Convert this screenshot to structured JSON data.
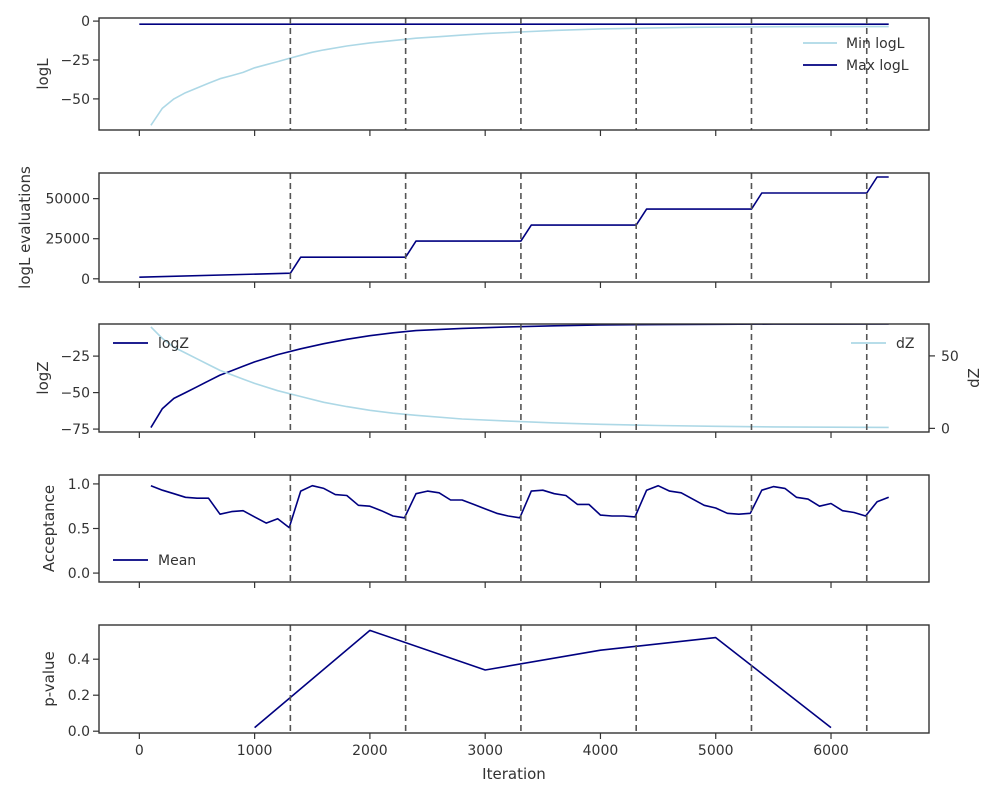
{
  "chart_data": [
    {
      "type": "line",
      "id": "logl",
      "ylabel": "logL",
      "xlim": [
        -350,
        6850
      ],
      "ylim": [
        -70,
        2
      ],
      "yticks": [
        0,
        -25,
        -50
      ],
      "yticklabels": [
        "0",
        "−25",
        "−50"
      ],
      "show_xticklabels": false,
      "legend": {
        "placement": "upper-right"
      },
      "series": [
        {
          "name": "Min logL",
          "color": "#add8e6",
          "x": [
            100,
            200,
            300,
            400,
            500,
            600,
            700,
            800,
            900,
            1000,
            1100,
            1200,
            1300,
            1400,
            1500,
            1600,
            1800,
            2000,
            2200,
            2400,
            2600,
            2800,
            3000,
            3300,
            3600,
            4000,
            4400,
            4800,
            5200,
            5600,
            6000,
            6500
          ],
          "y": [
            -67,
            -56,
            -50,
            -46,
            -43,
            -40,
            -37,
            -35,
            -33,
            -30,
            -28,
            -26,
            -24,
            -22,
            -20,
            -18.5,
            -16,
            -14,
            -12.5,
            -11,
            -10,
            -9,
            -8,
            -7,
            -6,
            -5,
            -4.5,
            -4,
            -3.8,
            -3.6,
            -3.5,
            -3.5
          ]
        },
        {
          "name": "Max logL",
          "color": "#000080",
          "x": [
            0,
            6500
          ],
          "y": [
            -2,
            -2
          ]
        }
      ]
    },
    {
      "type": "line",
      "id": "evals",
      "ylabel": "logL evaluations",
      "xlim": [
        -350,
        6850
      ],
      "ylim": [
        -2000,
        66000
      ],
      "yticks": [
        0,
        25000,
        50000
      ],
      "yticklabels": [
        "0",
        "25000",
        "50000"
      ],
      "show_xticklabels": false,
      "series": [
        {
          "name": "",
          "color": "#000080",
          "x": [
            0,
            1310,
            1400,
            2310,
            2400,
            3310,
            3400,
            4310,
            4400,
            5310,
            5400,
            6310,
            6400,
            6500
          ],
          "y": [
            1000,
            3500,
            13500,
            13500,
            23500,
            23500,
            33500,
            33500,
            43500,
            43500,
            53500,
            53500,
            63500,
            63500
          ]
        }
      ]
    },
    {
      "type": "line",
      "id": "logz",
      "ylabel": "logZ",
      "ylabel_right": "dZ",
      "xlim": [
        -350,
        6850
      ],
      "ylim": [
        -77,
        -3
      ],
      "ylim_right": [
        -2.5,
        72
      ],
      "yticks": [
        -25,
        -50,
        -75
      ],
      "yticklabels": [
        "−25",
        "−50",
        "−75"
      ],
      "yticks_right": [
        50,
        0
      ],
      "yticklabels_right": [
        "50",
        "0"
      ],
      "show_xticklabels": false,
      "series": [
        {
          "name": "logZ",
          "color": "#000080",
          "axis": "left",
          "x": [
            100,
            200,
            300,
            400,
            500,
            600,
            700,
            800,
            900,
            1000,
            1200,
            1400,
            1600,
            1800,
            2000,
            2200,
            2400,
            2800,
            3200,
            3600,
            4000,
            4500,
            5000,
            5500,
            6000,
            6500
          ],
          "y": [
            -74,
            -61,
            -54,
            -50,
            -46,
            -42,
            -38,
            -35,
            -32,
            -29,
            -24,
            -20,
            -16.5,
            -13.5,
            -11,
            -9,
            -7.5,
            -6,
            -5,
            -4.2,
            -3.7,
            -3.4,
            -3.2,
            -3.1,
            -3.05,
            -3.0
          ]
        },
        {
          "name": "dZ",
          "color": "#add8e6",
          "axis": "right",
          "x": [
            100,
            200,
            300,
            400,
            500,
            600,
            700,
            800,
            900,
            1000,
            1200,
            1400,
            1600,
            1800,
            2000,
            2200,
            2400,
            2800,
            3200,
            3600,
            4000,
            4500,
            5000,
            5500,
            6000,
            6500
          ],
          "y": [
            70,
            62,
            56,
            52,
            48,
            44,
            40,
            37,
            34,
            31,
            26,
            22,
            18,
            15,
            12.5,
            10.5,
            9,
            6.5,
            5,
            3.8,
            2.8,
            2,
            1.4,
            1,
            0.8,
            0.7
          ]
        }
      ]
    },
    {
      "type": "line",
      "id": "acceptance",
      "ylabel": "Acceptance",
      "xlim": [
        -350,
        6850
      ],
      "ylim": [
        -0.1,
        1.1
      ],
      "yticks": [
        1.0,
        0.5,
        0.0
      ],
      "yticklabels": [
        "1.0",
        "0.5",
        "0.0"
      ],
      "show_xticklabels": false,
      "series": [
        {
          "name": "Mean",
          "color": "#000080",
          "x": [
            100,
            200,
            300,
            400,
            500,
            600,
            700,
            800,
            900,
            1000,
            1100,
            1200,
            1300,
            1400,
            1500,
            1600,
            1700,
            1800,
            1900,
            2000,
            2100,
            2200,
            2300,
            2400,
            2500,
            2600,
            2700,
            2800,
            2900,
            3000,
            3100,
            3200,
            3300,
            3400,
            3500,
            3600,
            3700,
            3800,
            3900,
            4000,
            4100,
            4200,
            4300,
            4400,
            4500,
            4600,
            4700,
            4800,
            4900,
            5000,
            5100,
            5200,
            5300,
            5400,
            5500,
            5600,
            5700,
            5800,
            5900,
            6000,
            6100,
            6200,
            6300,
            6400,
            6500
          ],
          "y": [
            0.98,
            0.93,
            0.89,
            0.85,
            0.84,
            0.84,
            0.66,
            0.69,
            0.7,
            0.63,
            0.56,
            0.61,
            0.51,
            0.92,
            0.98,
            0.95,
            0.88,
            0.87,
            0.76,
            0.75,
            0.7,
            0.64,
            0.62,
            0.89,
            0.92,
            0.9,
            0.82,
            0.82,
            0.77,
            0.72,
            0.67,
            0.64,
            0.62,
            0.92,
            0.93,
            0.89,
            0.87,
            0.77,
            0.77,
            0.65,
            0.64,
            0.64,
            0.63,
            0.93,
            0.98,
            0.92,
            0.9,
            0.83,
            0.76,
            0.73,
            0.67,
            0.66,
            0.67,
            0.93,
            0.97,
            0.95,
            0.85,
            0.83,
            0.75,
            0.78,
            0.7,
            0.68,
            0.64,
            0.8,
            0.85
          ]
        }
      ]
    },
    {
      "type": "line",
      "id": "pvalue",
      "ylabel": "p-value",
      "xlabel": "Iteration",
      "xlim": [
        -350,
        6850
      ],
      "ylim": [
        -0.01,
        0.59
      ],
      "yticks": [
        0.0,
        0.2,
        0.4
      ],
      "yticklabels": [
        "0.0",
        "0.2",
        "0.4"
      ],
      "xticks": [
        0,
        1000,
        2000,
        3000,
        4000,
        5000,
        6000
      ],
      "xticklabels": [
        "0",
        "1000",
        "2000",
        "3000",
        "4000",
        "5000",
        "6000"
      ],
      "show_xticklabels": true,
      "series": [
        {
          "name": "",
          "color": "#000080",
          "x": [
            1000,
            2000,
            3000,
            4000,
            5000,
            6000
          ],
          "y": [
            0.02,
            0.56,
            0.34,
            0.45,
            0.52,
            0.02
          ]
        }
      ]
    }
  ],
  "shared": {
    "vlines": [
      1310,
      2310,
      3310,
      4310,
      5310,
      6310
    ],
    "vline_color": "#555555",
    "xticks": [
      0,
      1000,
      2000,
      3000,
      4000,
      5000,
      6000
    ]
  }
}
